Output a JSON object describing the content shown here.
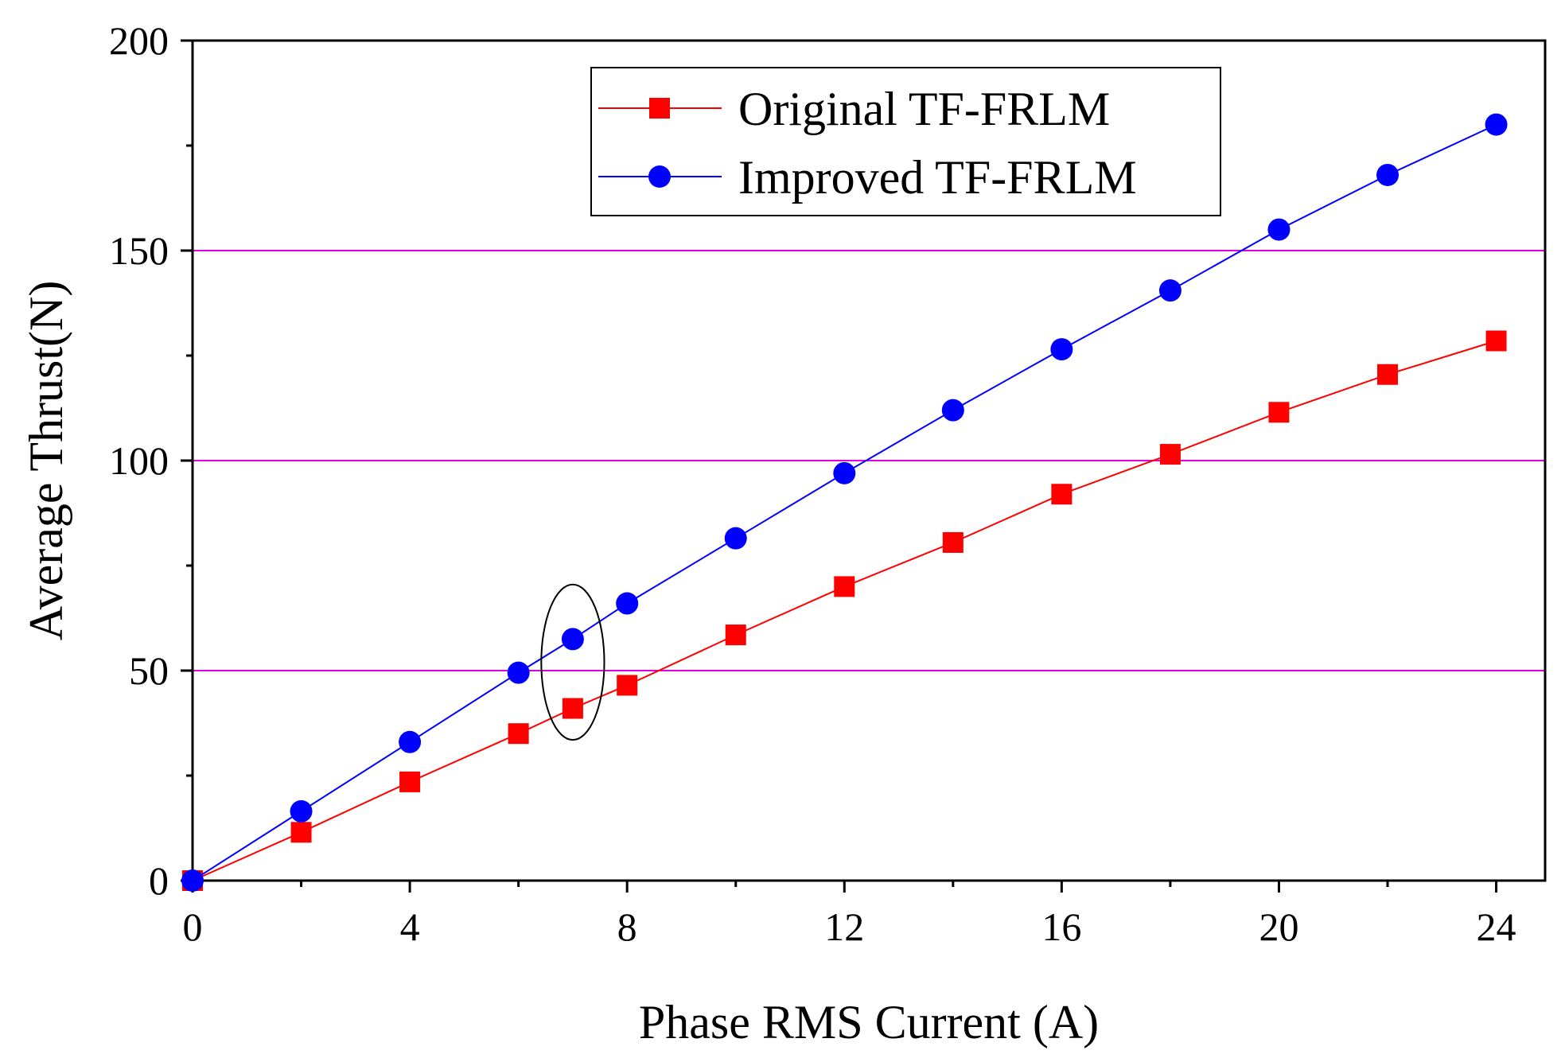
{
  "chart_data": {
    "type": "line",
    "title": "",
    "xlabel": "Phase RMS Current (A)",
    "ylabel": "Average Thrust(N)",
    "xlim": [
      0,
      24.9
    ],
    "ylim": [
      0,
      200
    ],
    "xticks": [
      0,
      4,
      8,
      12,
      16,
      20,
      24
    ],
    "yticks": [
      0,
      50,
      100,
      150,
      200
    ],
    "xtick_labels": [
      "0",
      "4",
      "8",
      "12",
      "16",
      "20",
      "24"
    ],
    "ytick_labels": [
      "0",
      "50",
      "100",
      "150",
      "200"
    ],
    "gridlines_y": [
      50,
      100,
      150
    ],
    "grid_color": "#e000e0",
    "legend_position": "top-center",
    "series": [
      {
        "name": "Original TF-FRLM",
        "color": "#ff0000",
        "marker": "square",
        "x": [
          0,
          2,
          4,
          6,
          7,
          8,
          10,
          12,
          14,
          16,
          18,
          20,
          22,
          24
        ],
        "y": [
          0,
          11.5,
          23.5,
          35,
          41,
          46.5,
          58.5,
          70,
          80.5,
          92,
          101.5,
          111.5,
          120.5,
          128.5
        ]
      },
      {
        "name": "Improved TF-FRLM",
        "color": "#0000ff",
        "marker": "circle",
        "x": [
          0,
          2,
          4,
          6,
          7,
          8,
          10,
          12,
          14,
          16,
          18,
          20,
          22,
          24
        ],
        "y": [
          0,
          16.5,
          33,
          49.5,
          57.5,
          66,
          81.5,
          97,
          112,
          126.5,
          140.5,
          155,
          168,
          180
        ]
      }
    ],
    "annotations": [
      {
        "type": "ellipse",
        "x": 7,
        "y": 52,
        "rx_units": 0.58,
        "ry_units": 18.5
      }
    ]
  }
}
